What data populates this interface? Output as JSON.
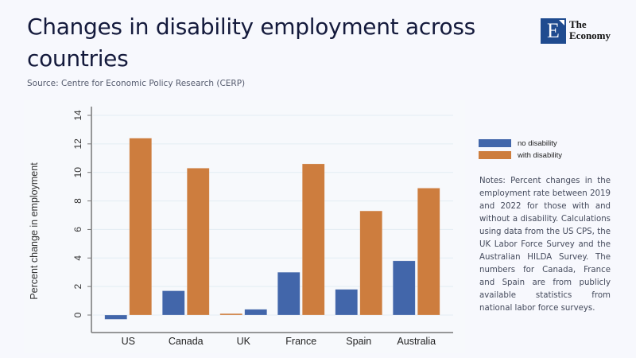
{
  "header": {
    "title": "Changes in disability employment across countries",
    "source": "Source: Centre for Economic Policy Research (CERP)"
  },
  "logo": {
    "letter": "E",
    "line1": "The",
    "line2": "Economy",
    "color": "#1f4b8f"
  },
  "notes": "Notes: Percent changes in the employment rate between 2019 and 2022 for those with and without a disability. Calculations using data from the US CPS, the UK Labor Force Survey and the Australian HILDA Survey. The numbers for Canada, France and Spain are from publicly available statistics from national labor force surveys.",
  "chart_data": {
    "type": "bar",
    "title": "",
    "xlabel": "",
    "ylabel": "Percent change in employment",
    "ylim": [
      -1,
      14.5
    ],
    "yticks": [
      0,
      2,
      4,
      6,
      8,
      10,
      12,
      14
    ],
    "grid": true,
    "legend_position": "right",
    "categories": [
      "US",
      "Canada",
      "UK",
      "France",
      "Spain",
      "Australia"
    ],
    "series": [
      {
        "name": "no disability",
        "color": "#4266aa",
        "values": [
          -0.3,
          1.7,
          0.4,
          3.0,
          1.8,
          3.8
        ]
      },
      {
        "name": "with disability",
        "color": "#cd7d3e",
        "values": [
          12.4,
          10.3,
          0.1,
          10.6,
          7.3,
          8.9
        ]
      }
    ]
  }
}
